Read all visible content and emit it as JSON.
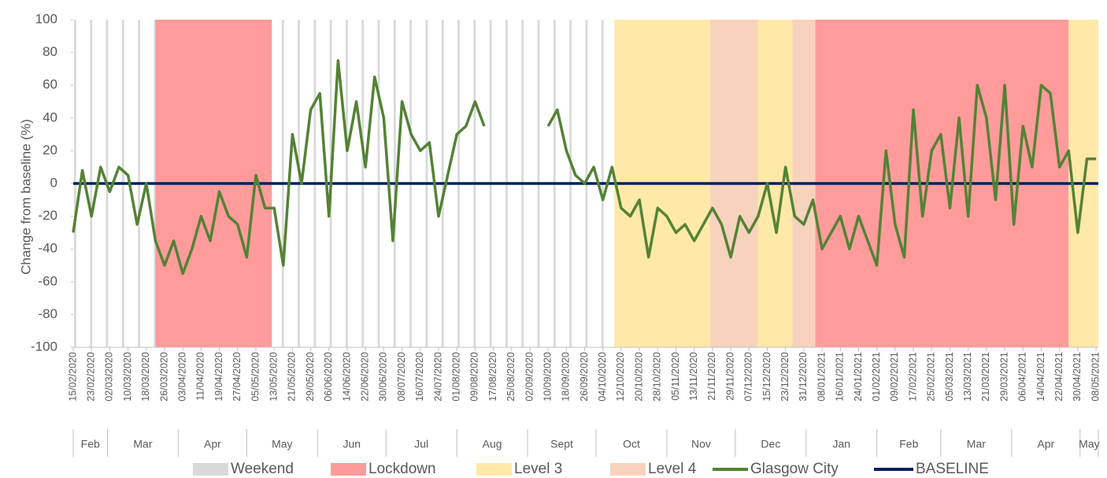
{
  "chart_data": {
    "type": "line",
    "y_label": "Change from baseline (%)",
    "ylim": [
      -100,
      100
    ],
    "yticks": [
      -100,
      -80,
      -60,
      -40,
      -20,
      0,
      20,
      40,
      60,
      80,
      100
    ],
    "xlim": [
      "15/02/2020",
      "09/05/2021"
    ],
    "xticks": [
      "15/02/2020",
      "23/02/2020",
      "02/03/2020",
      "10/03/2020",
      "18/03/2020",
      "26/03/2020",
      "03/04/2020",
      "11/04/2020",
      "19/04/2020",
      "27/04/2020",
      "05/05/2020",
      "13/05/2020",
      "21/05/2020",
      "29/05/2020",
      "06/06/2020",
      "14/06/2020",
      "22/06/2020",
      "30/06/2020",
      "08/07/2020",
      "16/07/2020",
      "24/07/2020",
      "01/08/2020",
      "09/08/2020",
      "17/08/2020",
      "25/08/2020",
      "02/09/2020",
      "10/09/2020",
      "18/09/2020",
      "26/09/2020",
      "04/10/2020",
      "12/10/2020",
      "20/10/2020",
      "28/10/2020",
      "05/11/2020",
      "13/11/2020",
      "21/11/2020",
      "29/11/2020",
      "07/12/2020",
      "15/12/2020",
      "23/12/2020",
      "31/12/2020",
      "08/01/2021",
      "16/01/2021",
      "24/01/2021",
      "01/02/2021",
      "09/02/2021",
      "17/02/2021",
      "25/02/2021",
      "05/03/2021",
      "13/03/2021",
      "21/03/2021",
      "29/03/2021",
      "06/04/2021",
      "14/04/2021",
      "22/04/2021",
      "30/04/2021",
      "08/05/2021"
    ],
    "months": [
      "Feb",
      "Mar",
      "Apr",
      "May",
      "Jun",
      "Jul",
      "Aug",
      "Sept",
      "Oct",
      "Nov",
      "Dec",
      "Jan",
      "Feb",
      "Mar",
      "Apr",
      "May"
    ],
    "shading": [
      {
        "name": "Weekend",
        "color": "#d9d9d9",
        "weekends": true,
        "ranges": [
          [
            "15/02/2020",
            "04/10/2020"
          ]
        ]
      },
      {
        "name": "Lockdown",
        "color": "#ff9b9b",
        "ranges": [
          [
            "22/03/2020",
            "12/05/2020"
          ],
          [
            "05/01/2021",
            "26/04/2021"
          ]
        ]
      },
      {
        "name": "Level 3",
        "color": "#ffe9a8",
        "ranges": [
          [
            "09/10/2020",
            "20/11/2020"
          ],
          [
            "11/12/2020",
            "26/12/2020"
          ],
          [
            "26/04/2021",
            "09/05/2021"
          ]
        ]
      },
      {
        "name": "Level 4",
        "color": "#f7d3bd",
        "ranges": [
          [
            "20/11/2020",
            "11/12/2020"
          ],
          [
            "26/12/2020",
            "05/01/2021"
          ]
        ]
      }
    ],
    "x": [
      "15/02/2020",
      "19/02/2020",
      "23/02/2020",
      "27/02/2020",
      "02/03/2020",
      "06/03/2020",
      "10/03/2020",
      "14/03/2020",
      "18/03/2020",
      "22/03/2020",
      "26/03/2020",
      "30/03/2020",
      "03/04/2020",
      "07/04/2020",
      "11/04/2020",
      "15/04/2020",
      "19/04/2020",
      "23/04/2020",
      "27/04/2020",
      "01/05/2020",
      "05/05/2020",
      "09/05/2020",
      "13/05/2020",
      "17/05/2020",
      "21/05/2020",
      "25/05/2020",
      "29/05/2020",
      "02/06/2020",
      "06/06/2020",
      "10/06/2020",
      "14/06/2020",
      "18/06/2020",
      "22/06/2020",
      "26/06/2020",
      "30/06/2020",
      "04/07/2020",
      "08/07/2020",
      "12/07/2020",
      "16/07/2020",
      "20/07/2020",
      "24/07/2020",
      "28/07/2020",
      "01/08/2020",
      "05/08/2020",
      "09/08/2020",
      "13/08/2020",
      "17/08/2020",
      "21/08/2020",
      "25/08/2020",
      "29/08/2020",
      "02/09/2020",
      "06/09/2020",
      "10/09/2020",
      "14/09/2020",
      "18/09/2020",
      "22/09/2020",
      "26/09/2020",
      "30/09/2020",
      "04/10/2020",
      "08/10/2020",
      "12/10/2020",
      "16/10/2020",
      "20/10/2020",
      "24/10/2020",
      "28/10/2020",
      "01/11/2020",
      "05/11/2020",
      "09/11/2020",
      "13/11/2020",
      "17/11/2020",
      "21/11/2020",
      "25/11/2020",
      "29/11/2020",
      "03/12/2020",
      "07/12/2020",
      "11/12/2020",
      "15/12/2020",
      "19/12/2020",
      "23/12/2020",
      "27/12/2020",
      "31/12/2020",
      "04/01/2021",
      "08/01/2021",
      "12/01/2021",
      "16/01/2021",
      "20/01/2021",
      "24/01/2021",
      "28/01/2021",
      "01/02/2021",
      "05/02/2021",
      "09/02/2021",
      "13/02/2021",
      "17/02/2021",
      "21/02/2021",
      "25/02/2021",
      "01/03/2021",
      "05/03/2021",
      "09/03/2021",
      "13/03/2021",
      "17/03/2021",
      "21/03/2021",
      "25/03/2021",
      "29/03/2021",
      "02/04/2021",
      "06/04/2021",
      "10/04/2021",
      "14/04/2021",
      "18/04/2021",
      "22/04/2021",
      "26/04/2021",
      "30/04/2021",
      "04/05/2021",
      "08/05/2021"
    ],
    "series": [
      {
        "name": "Glasgow City",
        "color": "#548235",
        "values": [
          -30,
          8,
          -20,
          10,
          -5,
          10,
          5,
          -25,
          0,
          -35,
          -50,
          -35,
          -55,
          -40,
          -20,
          -35,
          -5,
          -20,
          -25,
          -45,
          5,
          -15,
          -15,
          -50,
          30,
          0,
          45,
          55,
          -20,
          75,
          20,
          50,
          10,
          65,
          40,
          -35,
          50,
          30,
          20,
          25,
          -20,
          5,
          30,
          35,
          50,
          35,
          null,
          null,
          null,
          null,
          null,
          null,
          35,
          45,
          20,
          5,
          0,
          10,
          -10,
          10,
          -15,
          -20,
          -10,
          -45,
          -15,
          -20,
          -30,
          -25,
          -35,
          -25,
          -15,
          -25,
          -45,
          -20,
          -30,
          -20,
          0,
          -30,
          10,
          -20,
          -25,
          -10,
          -40,
          -30,
          -20,
          -40,
          -20,
          -35,
          -50,
          20,
          -25,
          -45,
          45,
          -20,
          20,
          30,
          -15,
          40,
          -20,
          60,
          40,
          -10,
          60,
          -25,
          35,
          10,
          60,
          55,
          10,
          20,
          -30,
          15,
          15
        ]
      }
    ],
    "baseline": {
      "name": "BASELINE",
      "color": "#002060",
      "value": 0
    }
  }
}
